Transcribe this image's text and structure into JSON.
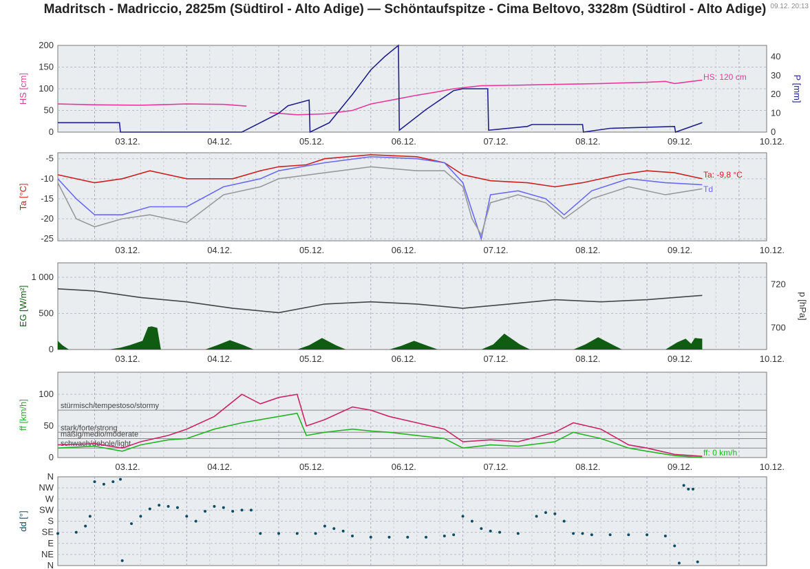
{
  "title": "Madritsch - Madriccio, 2825m (Südtirol - Alto Adige) — Schöntaufspitze - Cima Beltovo, 3328m (Südtirol - Alto Adige)",
  "timestamp": "09.12. 20:13",
  "x_ticks": [
    "03.12.",
    "04.12.",
    "05.12.",
    "06.12.",
    "07.12.",
    "08.12.",
    "09.12.",
    "10.12."
  ],
  "colors": {
    "plot_bg": "#e9edf0",
    "hs": "#e8399a",
    "precip": "#1f1f8a",
    "ta": "#cc1f1f",
    "td": "#6a6af0",
    "dew_grey": "#999999",
    "eg": "#0f5c12",
    "pressure": "#444444",
    "ff": "#24b324",
    "gust": "#cc2266",
    "dd": "#0e4c66"
  },
  "chart_data": [
    {
      "type": "line",
      "ylabel": "HS [cm]",
      "ylabel_right": "P [mm]",
      "ylim": [
        0,
        200
      ],
      "ylim_right": [
        0,
        46
      ],
      "yticks": [
        "0",
        "50",
        "100",
        "150",
        "200"
      ],
      "yticks_right": [
        "0",
        "10",
        "20",
        "30",
        "40"
      ],
      "annotation": "HS: 120 cm",
      "series": [
        {
          "key": "hs",
          "axis": "left",
          "color": "#e8399a",
          "x": [
            2.6,
            3.0,
            3.5,
            4.0,
            4.4,
            4.65,
            4.7,
            4.9,
            5.2,
            5.5,
            5.8,
            6.0,
            6.25,
            6.5,
            6.7,
            6.9,
            7.2,
            7.5,
            8.0,
            8.5,
            9.0,
            9.2,
            9.3,
            9.6
          ],
          "y": [
            65,
            63,
            62,
            65,
            64,
            60,
            null,
            45,
            40,
            42,
            50,
            65,
            75,
            85,
            92,
            100,
            107,
            108,
            110,
            112,
            115,
            117,
            112,
            120
          ]
        },
        {
          "key": "precip",
          "axis": "right",
          "color": "#1f1f8a",
          "x": [
            2.6,
            3.27,
            3.28,
            4.6,
            4.8,
            5.0,
            5.1,
            5.33,
            5.34,
            5.55,
            5.8,
            6.0,
            6.15,
            6.3,
            6.31,
            6.6,
            6.9,
            7.0,
            7.27,
            7.28,
            7.7,
            7.75,
            8.3,
            8.31,
            8.6,
            9.3,
            9.31,
            9.6
          ],
          "y": [
            5,
            5,
            0,
            0,
            5,
            10,
            14,
            17,
            0,
            5,
            20,
            33,
            40,
            46,
            1,
            12,
            22,
            23,
            23,
            1,
            3,
            4,
            4,
            0,
            2,
            3,
            0,
            5
          ]
        }
      ]
    },
    {
      "type": "line",
      "ylabel": "Ta [°C]",
      "ylim": [
        -25.5,
        -3.5
      ],
      "yticks": [
        "-25",
        "-20",
        "-15",
        "-10",
        "-5"
      ],
      "annotations": [
        "Ta: -9,8 °C",
        "Td"
      ],
      "series": [
        {
          "key": "ta",
          "name": "Ta",
          "color": "#cc1f1f",
          "x": [
            2.6,
            3.0,
            3.3,
            3.6,
            4.0,
            4.5,
            4.8,
            5.0,
            5.3,
            5.5,
            6.0,
            6.5,
            6.8,
            7.0,
            7.3,
            7.7,
            8.0,
            8.3,
            8.7,
            9.0,
            9.3,
            9.6
          ],
          "y": [
            -9,
            -11,
            -10,
            -8,
            -10,
            -10,
            -8,
            -7,
            -6.5,
            -5,
            -4,
            -4.5,
            -6,
            -9,
            -10.5,
            -11,
            -12,
            -11,
            -9,
            -8,
            -8.5,
            -10
          ]
        },
        {
          "key": "td",
          "name": "Td",
          "color": "#6a6af0",
          "x": [
            2.6,
            2.8,
            3.0,
            3.3,
            3.6,
            4.0,
            4.4,
            4.8,
            5.0,
            5.5,
            6.0,
            6.5,
            6.8,
            7.0,
            7.1,
            7.2,
            7.3,
            7.6,
            7.9,
            8.1,
            8.4,
            8.8,
            9.2,
            9.6
          ],
          "y": [
            -10,
            -15,
            -19,
            -19,
            -17,
            -17,
            -12,
            -10,
            -8,
            -6,
            -4.5,
            -5,
            -6,
            -11,
            -18,
            -25,
            -14,
            -13,
            -15,
            -19,
            -13,
            -10,
            -11,
            -11.5
          ]
        },
        {
          "key": "dew_grey",
          "color": "#999999",
          "x": [
            2.6,
            2.8,
            3.0,
            3.3,
            3.6,
            4.0,
            4.4,
            4.8,
            5.0,
            5.5,
            6.0,
            6.5,
            6.8,
            7.0,
            7.1,
            7.2,
            7.3,
            7.6,
            7.9,
            8.1,
            8.4,
            8.8,
            9.2,
            9.6
          ],
          "y": [
            -11,
            -20,
            -22,
            -20,
            -19,
            -21,
            -14,
            -12,
            -10,
            -8.5,
            -7,
            -8,
            -8,
            -12,
            -20,
            -24,
            -16,
            -14,
            -16,
            -20,
            -15,
            -12,
            -14,
            -12.5
          ]
        }
      ]
    },
    {
      "type": "area",
      "ylabel": "EG [W/m²]",
      "ylabel_right": "p [hPa]",
      "ylim": [
        0,
        1200
      ],
      "ylim_right": [
        690,
        730
      ],
      "yticks": [
        "0",
        "500",
        "1 000"
      ],
      "yticks_right": [
        "700",
        "720"
      ],
      "series": [
        {
          "key": "eg",
          "type": "area",
          "color": "#0f5c12",
          "x": [
            2.6,
            2.65,
            2.72,
            3.15,
            3.28,
            3.38,
            3.52,
            3.58,
            3.62,
            3.68,
            3.72,
            4.2,
            4.33,
            4.47,
            4.62,
            4.73,
            5.2,
            5.33,
            5.47,
            5.62,
            5.73,
            6.2,
            6.33,
            6.47,
            6.62,
            6.73,
            7.2,
            7.33,
            7.45,
            7.62,
            7.73,
            8.2,
            8.33,
            8.47,
            8.62,
            8.73,
            9.2,
            9.33,
            9.42,
            9.48,
            9.52,
            9.6
          ],
          "y": [
            120,
            60,
            0,
            0,
            25,
            60,
            120,
            310,
            320,
            300,
            0,
            0,
            60,
            130,
            60,
            0,
            0,
            60,
            160,
            60,
            0,
            0,
            50,
            120,
            50,
            0,
            0,
            70,
            220,
            70,
            0,
            0,
            70,
            170,
            70,
            0,
            0,
            100,
            150,
            80,
            160,
            150
          ]
        },
        {
          "key": "pressure",
          "type": "line",
          "axis": "right",
          "color": "#444444",
          "x": [
            2.6,
            3.0,
            3.5,
            4.0,
            4.5,
            5.0,
            5.5,
            6.0,
            6.5,
            7.0,
            7.5,
            8.0,
            8.5,
            9.0,
            9.6
          ],
          "y": [
            718,
            717,
            714,
            712,
            709,
            707,
            711,
            712,
            711,
            709,
            711,
            713,
            712,
            713,
            715
          ]
        }
      ]
    },
    {
      "type": "line",
      "ylabel": "ff [km/h]",
      "ylim": [
        0,
        135
      ],
      "yticks": [
        "0",
        "50",
        "100"
      ],
      "thresholds": [
        {
          "label": "stürmisch/tempestoso/stormy",
          "value": 75
        },
        {
          "label": "stark/forte/strong",
          "value": 40
        },
        {
          "label": "mäßig/medio/moderate",
          "value": 30
        },
        {
          "label": "schwach/debole/light",
          "value": 15
        }
      ],
      "annotation": "ff: 0 km/h",
      "series": [
        {
          "key": "gust",
          "color": "#cc2266",
          "x": [
            2.6,
            3.0,
            3.3,
            3.5,
            3.8,
            4.0,
            4.3,
            4.6,
            4.8,
            5.0,
            5.2,
            5.3,
            5.5,
            5.8,
            6.0,
            6.2,
            6.5,
            6.8,
            7.0,
            7.3,
            7.6,
            8.0,
            8.2,
            8.5,
            8.8,
            9.0,
            9.3,
            9.6
          ],
          "y": [
            20,
            22,
            15,
            25,
            35,
            45,
            65,
            100,
            85,
            95,
            100,
            50,
            60,
            80,
            75,
            65,
            55,
            45,
            25,
            28,
            25,
            40,
            55,
            45,
            20,
            15,
            5,
            2
          ]
        },
        {
          "key": "ff",
          "color": "#24b324",
          "x": [
            2.6,
            3.0,
            3.3,
            3.5,
            3.8,
            4.0,
            4.3,
            4.6,
            4.8,
            5.0,
            5.2,
            5.3,
            5.5,
            5.8,
            6.0,
            6.2,
            6.5,
            6.8,
            7.0,
            7.3,
            7.6,
            8.0,
            8.2,
            8.5,
            8.8,
            9.0,
            9.3,
            9.6
          ],
          "y": [
            15,
            18,
            10,
            20,
            28,
            30,
            45,
            55,
            60,
            65,
            70,
            35,
            40,
            45,
            42,
            40,
            35,
            30,
            15,
            20,
            18,
            25,
            40,
            30,
            15,
            10,
            3,
            0
          ]
        }
      ]
    },
    {
      "type": "scatter",
      "ylabel": "dd [°]",
      "ylim": [
        0,
        360
      ],
      "yticks": [
        "N",
        "NE",
        "E",
        "SE",
        "S",
        "SW",
        "W",
        "NW",
        "N"
      ],
      "series": [
        {
          "key": "dd",
          "color": "#0e4c66",
          "x": [
            2.6,
            2.8,
            2.9,
            2.95,
            3.0,
            3.1,
            3.2,
            3.28,
            3.3,
            3.4,
            3.5,
            3.6,
            3.7,
            3.8,
            3.9,
            4.0,
            4.1,
            4.2,
            4.3,
            4.4,
            4.5,
            4.6,
            4.7,
            4.8,
            5.0,
            5.2,
            5.4,
            5.5,
            5.6,
            5.7,
            5.8,
            6.0,
            6.2,
            6.4,
            6.6,
            6.8,
            6.9,
            7.0,
            7.1,
            7.2,
            7.3,
            7.4,
            7.6,
            7.8,
            7.9,
            8.0,
            8.1,
            8.2,
            8.3,
            8.4,
            8.6,
            8.8,
            9.0,
            9.2,
            9.3,
            9.35,
            9.4,
            9.45,
            9.5,
            9.55
          ],
          "y": [
            130,
            135,
            160,
            200,
            340,
            330,
            340,
            350,
            20,
            170,
            200,
            230,
            245,
            240,
            235,
            200,
            180,
            220,
            240,
            235,
            220,
            225,
            225,
            130,
            130,
            130,
            130,
            160,
            150,
            140,
            120,
            115,
            115,
            115,
            115,
            120,
            125,
            200,
            180,
            150,
            140,
            135,
            130,
            200,
            215,
            210,
            180,
            130,
            130,
            125,
            125,
            125,
            125,
            120,
            80,
            10,
            325,
            310,
            310,
            15
          ]
        }
      ]
    }
  ]
}
